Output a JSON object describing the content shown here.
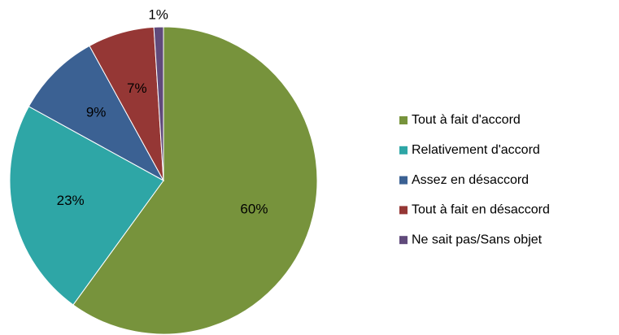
{
  "chart_data": {
    "type": "pie",
    "categories": [
      "Tout à fait d'accord",
      "Relativement d'accord",
      "Assez en désaccord",
      "Tout à fait en désaccord",
      "Ne sait pas/Sans objet"
    ],
    "values": [
      60,
      23,
      9,
      7,
      1
    ],
    "value_labels": [
      "60%",
      "23%",
      "9%",
      "7%",
      "1%"
    ],
    "colors": [
      "#77933c",
      "#2ea6a6",
      "#3b6193",
      "#953735",
      "#604a7b"
    ],
    "legend": "right"
  }
}
